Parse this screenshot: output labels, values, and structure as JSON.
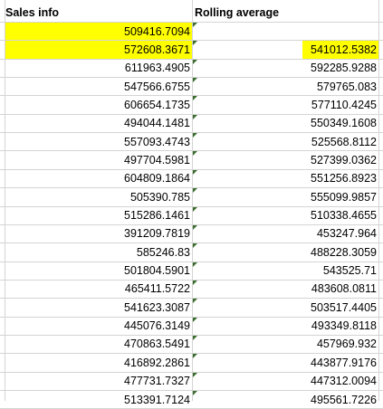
{
  "headers": {
    "sales": "Sales info",
    "rolling": "Rolling average"
  },
  "colors": {
    "highlight": "#ffff00",
    "gridline": "#d4d4d4",
    "note_marker": "#3c6e2f"
  },
  "rows": [
    {
      "sales": "509416.7094",
      "rolling": "",
      "sales_hl": true,
      "rolling_hl": false
    },
    {
      "sales": "572608.3671",
      "rolling": "541012.5382",
      "sales_hl": true,
      "rolling_hl": true
    },
    {
      "sales": "611963.4905",
      "rolling": "592285.9288",
      "sales_hl": false,
      "rolling_hl": false
    },
    {
      "sales": "547566.6755",
      "rolling": "579765.083",
      "sales_hl": false,
      "rolling_hl": false
    },
    {
      "sales": "606654.1735",
      "rolling": "577110.4245",
      "sales_hl": false,
      "rolling_hl": false
    },
    {
      "sales": "494044.1481",
      "rolling": "550349.1608",
      "sales_hl": false,
      "rolling_hl": false
    },
    {
      "sales": "557093.4743",
      "rolling": "525568.8112",
      "sales_hl": false,
      "rolling_hl": false
    },
    {
      "sales": "497704.5981",
      "rolling": "527399.0362",
      "sales_hl": false,
      "rolling_hl": false
    },
    {
      "sales": "604809.1864",
      "rolling": "551256.8923",
      "sales_hl": false,
      "rolling_hl": false
    },
    {
      "sales": "505390.785",
      "rolling": "555099.9857",
      "sales_hl": false,
      "rolling_hl": false
    },
    {
      "sales": "515286.1461",
      "rolling": "510338.4655",
      "sales_hl": false,
      "rolling_hl": false
    },
    {
      "sales": "391209.7819",
      "rolling": "453247.964",
      "sales_hl": false,
      "rolling_hl": false
    },
    {
      "sales": "585246.83",
      "rolling": "488228.3059",
      "sales_hl": false,
      "rolling_hl": false
    },
    {
      "sales": "501804.5901",
      "rolling": "543525.71",
      "sales_hl": false,
      "rolling_hl": false
    },
    {
      "sales": "465411.5722",
      "rolling": "483608.0811",
      "sales_hl": false,
      "rolling_hl": false
    },
    {
      "sales": "541623.3087",
      "rolling": "503517.4405",
      "sales_hl": false,
      "rolling_hl": false
    },
    {
      "sales": "445076.3149",
      "rolling": "493349.8118",
      "sales_hl": false,
      "rolling_hl": false
    },
    {
      "sales": "470863.5491",
      "rolling": "457969.932",
      "sales_hl": false,
      "rolling_hl": false
    },
    {
      "sales": "416892.2861",
      "rolling": "443877.9176",
      "sales_hl": false,
      "rolling_hl": false
    },
    {
      "sales": "477731.7327",
      "rolling": "447312.0094",
      "sales_hl": false,
      "rolling_hl": false
    },
    {
      "sales": "513391.7124",
      "rolling": "495561.7226",
      "sales_hl": false,
      "rolling_hl": false
    }
  ]
}
